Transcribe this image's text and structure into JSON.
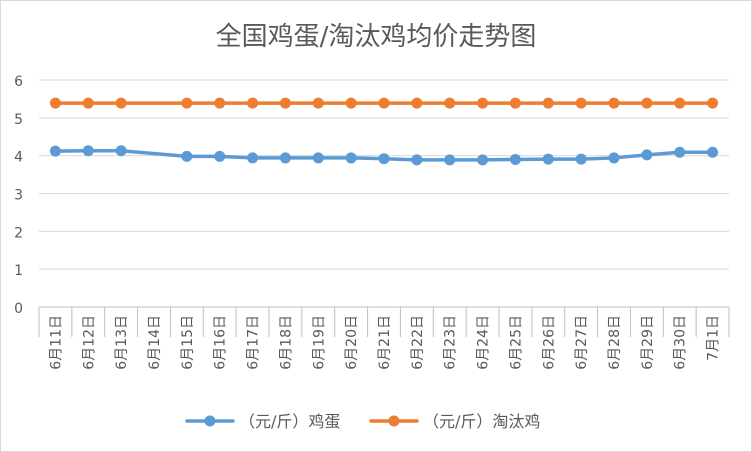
{
  "chart_data": {
    "type": "line",
    "title": "全国鸡蛋/淘汰鸡均价走势图",
    "categories": [
      "6月11日",
      "6月12日",
      "6月13日",
      "6月14日",
      "6月15日",
      "6月16日",
      "6月17日",
      "6月18日",
      "6月19日",
      "6月20日",
      "6月21日",
      "6月22日",
      "6月23日",
      "6月24日",
      "6月25日",
      "6月26日",
      "6月27日",
      "6月28日",
      "6月29日",
      "6月30日",
      "7月1日"
    ],
    "y_ticks": [
      "0",
      "1",
      "2",
      "3",
      "4",
      "5",
      "6"
    ],
    "ylim": [
      0,
      6
    ],
    "grid": true,
    "legend_position": "bottom",
    "series": [
      {
        "name": "（元/斤）鸡蛋",
        "color": "#5b9bd5",
        "values": [
          4.12,
          4.13,
          4.13,
          null,
          3.98,
          3.98,
          3.94,
          3.94,
          3.94,
          3.94,
          3.92,
          3.89,
          3.89,
          3.89,
          3.9,
          3.91,
          3.91,
          3.94,
          4.02,
          4.09,
          4.09
        ]
      },
      {
        "name": "（元/斤）淘汰鸡",
        "color": "#ed7d31",
        "values": [
          5.39,
          5.39,
          5.39,
          null,
          5.39,
          5.39,
          5.39,
          5.39,
          5.39,
          5.39,
          5.39,
          5.39,
          5.39,
          5.39,
          5.39,
          5.39,
          5.39,
          5.39,
          5.39,
          5.39,
          5.39
        ]
      }
    ]
  }
}
